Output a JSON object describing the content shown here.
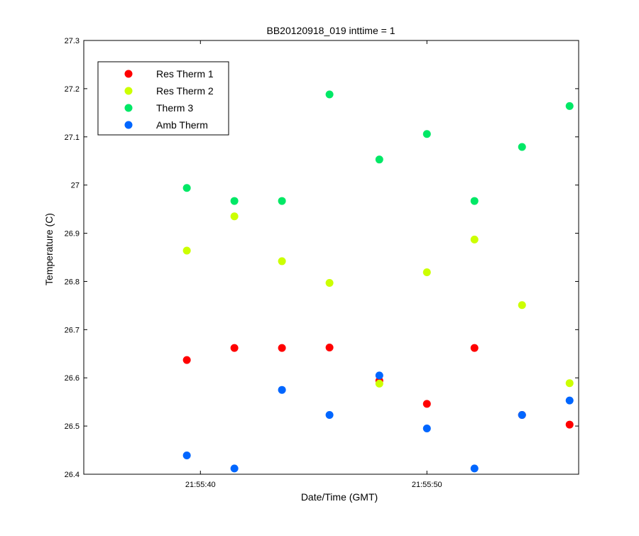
{
  "chart_data": {
    "type": "scatter",
    "title": "BB20120918_019 inttime = 1",
    "xlabel": "Date/Time (GMT)",
    "ylabel": "Temperature (C)",
    "x_unit": "seconds past 21:55:00 GMT",
    "xlim": [
      34.85,
      56.7
    ],
    "ylim": [
      26.4,
      27.3
    ],
    "x_ticks": [
      {
        "value": 40,
        "label": "21:55:40"
      },
      {
        "value": 50,
        "label": "21:55:50"
      }
    ],
    "y_ticks": [
      {
        "value": 26.4,
        "label": "26.4"
      },
      {
        "value": 26.5,
        "label": "26.5"
      },
      {
        "value": 26.6,
        "label": "26.6"
      },
      {
        "value": 26.7,
        "label": "26.7"
      },
      {
        "value": 26.8,
        "label": "26.8"
      },
      {
        "value": 26.9,
        "label": "26.9"
      },
      {
        "value": 27.0,
        "label": "27"
      },
      {
        "value": 27.1,
        "label": "27.1"
      },
      {
        "value": 27.2,
        "label": "27.2"
      },
      {
        "value": 27.3,
        "label": "27.3"
      }
    ],
    "x": [
      39.4,
      41.5,
      43.6,
      45.7,
      47.9,
      50.0,
      52.1,
      54.2,
      56.3
    ],
    "series": [
      {
        "name": "Res Therm 1",
        "color": "#ff0000",
        "values": [
          26.637,
          26.662,
          26.662,
          26.663,
          26.594,
          26.546,
          26.662,
          26.523,
          26.503
        ]
      },
      {
        "name": "Res Therm 2",
        "color": "#ccff00",
        "values": [
          26.864,
          26.935,
          26.842,
          26.797,
          26.588,
          26.819,
          26.887,
          26.751,
          26.589
        ]
      },
      {
        "name": "Therm 3",
        "color": "#00e866",
        "values": [
          26.994,
          26.967,
          26.967,
          27.188,
          27.053,
          27.106,
          26.967,
          27.079,
          27.164
        ]
      },
      {
        "name": "Amb Therm",
        "color": "#0066ff",
        "values": [
          26.439,
          26.412,
          26.575,
          26.523,
          26.605,
          26.495,
          26.412,
          26.523,
          26.553
        ]
      }
    ],
    "grid": false,
    "legend_position": "top-left",
    "marker": "filled-circle"
  }
}
